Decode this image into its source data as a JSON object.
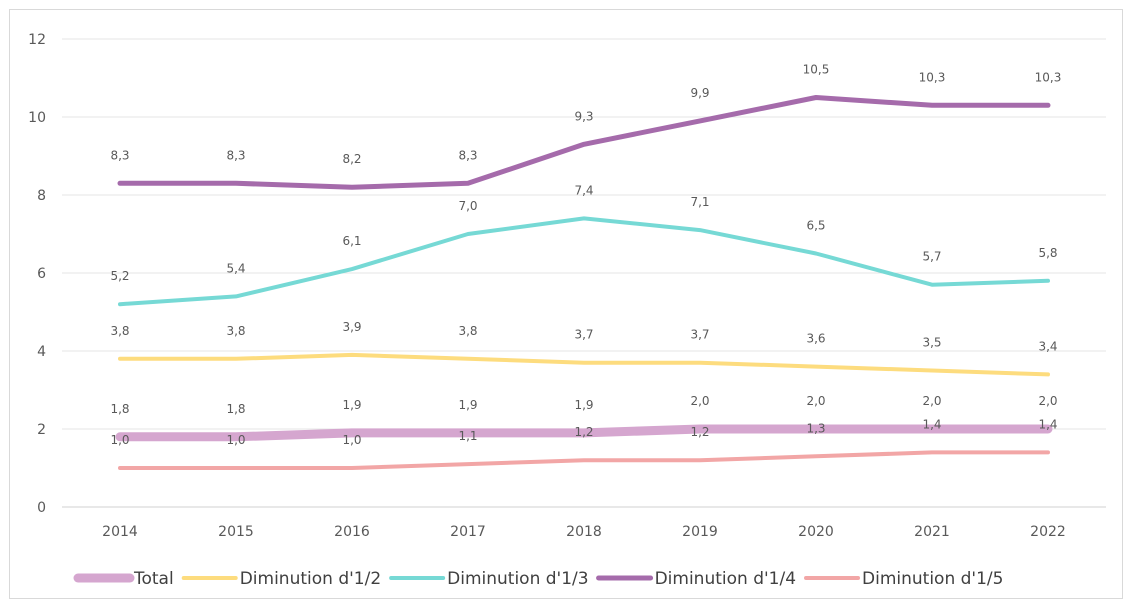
{
  "chart_data": {
    "type": "line",
    "title": "",
    "xlabel": "",
    "ylabel": "",
    "categories": [
      "2014",
      "2015",
      "2016",
      "2017",
      "2018",
      "2019",
      "2020",
      "2021",
      "2022"
    ],
    "ylim": [
      0,
      12
    ],
    "yticks": [
      0,
      2,
      4,
      6,
      8,
      10,
      12
    ],
    "grid": true,
    "legend_position": "bottom",
    "series": [
      {
        "name": "Total",
        "color": "#d5a6cf",
        "values": [
          1.8,
          1.8,
          1.9,
          1.9,
          1.9,
          2.0,
          2.0,
          2.0,
          2.0
        ],
        "labels": [
          "1,8",
          "1,8",
          "1,9",
          "1,9",
          "1,9",
          "2,0",
          "2,0",
          "2,0",
          "2,0"
        ]
      },
      {
        "name": "Diminution d'1/2",
        "color": "#fddc7e",
        "values": [
          3.8,
          3.8,
          3.9,
          3.8,
          3.7,
          3.7,
          3.6,
          3.5,
          3.4
        ],
        "labels": [
          "3,8",
          "3,8",
          "3,9",
          "3,8",
          "3,7",
          "3,7",
          "3,6",
          "3,5",
          "3,4"
        ]
      },
      {
        "name": "Diminution d'1/3",
        "color": "#76d9d5",
        "values": [
          5.2,
          5.4,
          6.1,
          7.0,
          7.4,
          7.1,
          6.5,
          5.7,
          5.8
        ],
        "labels": [
          "5,2",
          "5,4",
          "6,1",
          "7,0",
          "7,4",
          "7,1",
          "6,5",
          "5,7",
          "5,8"
        ]
      },
      {
        "name": "Diminution d'1/4",
        "color": "#a56bab",
        "values": [
          8.3,
          8.3,
          8.2,
          8.3,
          9.3,
          9.9,
          10.5,
          10.3,
          10.3
        ],
        "labels": [
          "8,3",
          "8,3",
          "8,2",
          "8,3",
          "9,3",
          "9,9",
          "10,5",
          "10,3",
          "10,3"
        ]
      },
      {
        "name": "Diminution d'1/5",
        "color": "#f2a6a6",
        "values": [
          1.0,
          1.0,
          1.0,
          1.1,
          1.2,
          1.2,
          1.3,
          1.4,
          1.4
        ],
        "labels": [
          "1,0",
          "1,0",
          "1,0",
          "1,1",
          "1,2",
          "1,2",
          "1,3",
          "1,4",
          "1,4"
        ]
      }
    ]
  }
}
